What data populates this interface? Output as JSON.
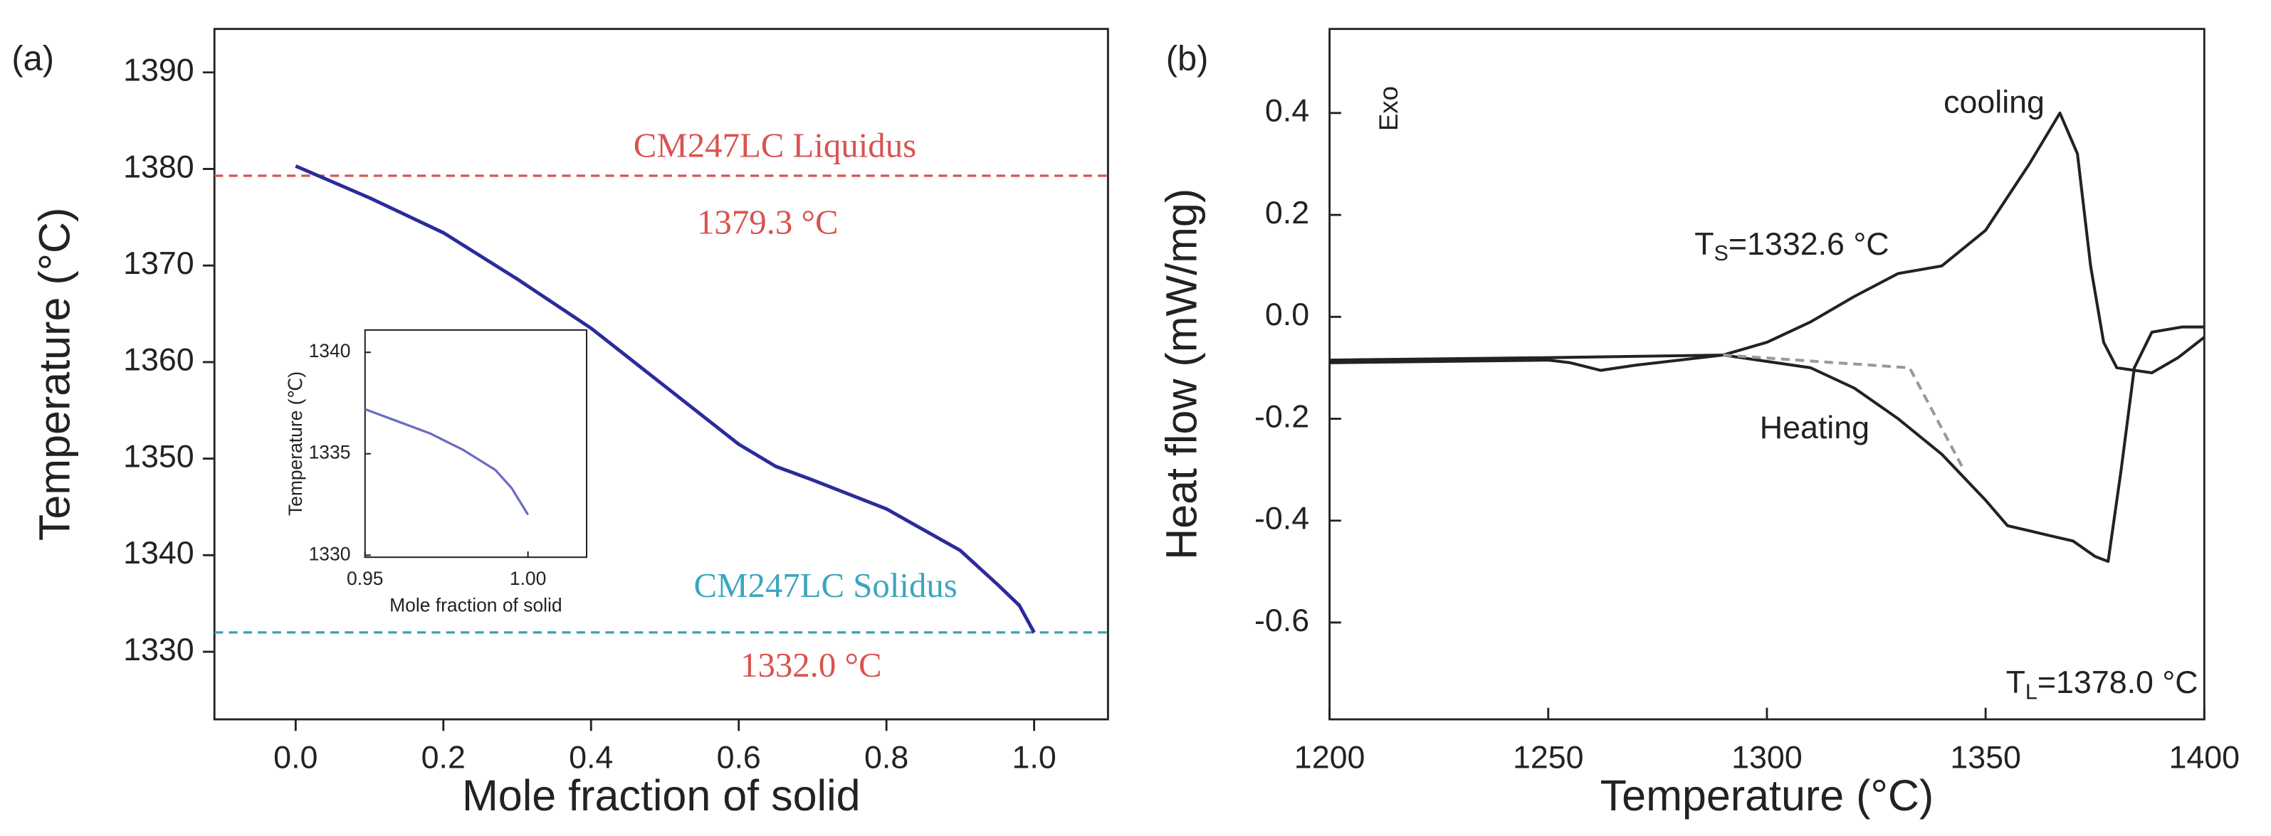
{
  "chart_data": [
    {
      "type": "line",
      "panel_label": "(a)",
      "x_label": "Mole fraction of solid",
      "y_label": "Temperature (°C)",
      "xlim": [
        -0.11,
        1.1
      ],
      "ylim": [
        1323,
        1394.5
      ],
      "xticks": [
        {
          "value": 0,
          "label": "0.0"
        },
        0.2,
        0.4,
        0.6,
        0.8,
        {
          "value": 1,
          "label": "1.0"
        }
      ],
      "yticks": [
        1330,
        1340,
        1350,
        1360,
        1370,
        1380,
        1390
      ],
      "series": [
        {
          "color": "#2b2b9c",
          "x": [
            0,
            0.1,
            0.2,
            0.3,
            0.4,
            0.5,
            0.6,
            0.65,
            0.7,
            0.8,
            0.9,
            0.95,
            0.98,
            1.0
          ],
          "values": [
            1380.3,
            1377,
            1373.4,
            1368.6,
            1363.5,
            1357.5,
            1351.5,
            1349.2,
            1347.8,
            1344.8,
            1340.5,
            1337,
            1334.8,
            1332
          ]
        }
      ],
      "reference_lines": [
        {
          "value": 1379.3,
          "color": "#d9534f",
          "label": "CM247LC Liquidus",
          "label_color": "#d9534f",
          "value_label": "1379.3 °C",
          "value_label_color": "#d9534f"
        },
        {
          "value": 1332.0,
          "color": "#3a9fb5",
          "label": "CM247LC Solidus",
          "label_color": "#3aa6c0",
          "value_label": "1332.0 °C",
          "value_label_color": "#d9534f"
        }
      ],
      "inset": {
        "type": "line",
        "x_label": "Mole fraction of solid",
        "y_label": "Temperature (℃)",
        "xlim": [
          0.95,
          1.018
        ],
        "ylim": [
          1329.9,
          1341.1
        ],
        "xticks": [
          0.95,
          {
            "value": 1,
            "label": "1.00"
          }
        ],
        "yticks": [
          1330,
          1335,
          1340
        ],
        "series": [
          {
            "color": "#6b6bc4",
            "x": [
              0.95,
              0.96,
              0.97,
              0.98,
              0.99,
              0.995,
              1.0
            ],
            "values": [
              1337.2,
              1336.6,
              1336,
              1335.2,
              1334.2,
              1333.3,
              1332
            ]
          }
        ]
      }
    },
    {
      "type": "line",
      "panel_label": "(b)",
      "x_label": "Temperature (°C)",
      "y_label": "Heat flow (mW/mg)",
      "xlim": [
        1200,
        1400
      ],
      "ylim": [
        -0.79,
        0.565
      ],
      "xticks": [
        1200,
        1250,
        1300,
        1350,
        1400
      ],
      "yticks": [
        0.4,
        0.2,
        {
          "value": 0,
          "label": "0.0"
        },
        -0.2,
        -0.4,
        -0.6
      ],
      "series": [
        {
          "color": "#222222",
          "x": [
            1200,
            1250,
            1255,
            1262,
            1270,
            1290,
            1300,
            1310,
            1320,
            1330,
            1340,
            1350,
            1360,
            1367,
            1371,
            1374,
            1377,
            1380,
            1388,
            1394,
            1400
          ],
          "values": [
            -0.09,
            -0.085,
            -0.09,
            -0.105,
            -0.095,
            -0.075,
            -0.05,
            -0.01,
            0.04,
            0.085,
            0.1,
            0.17,
            0.3,
            0.4,
            0.32,
            0.1,
            -0.05,
            -0.1,
            -0.11,
            -0.08,
            -0.04
          ]
        },
        {
          "color": "#222222",
          "x": [
            1200,
            1250,
            1290,
            1310,
            1320,
            1330,
            1340,
            1350,
            1355,
            1360,
            1365,
            1370,
            1375,
            1378,
            1381,
            1384,
            1388,
            1395,
            1400
          ],
          "values": [
            -0.085,
            -0.08,
            -0.075,
            -0.1,
            -0.14,
            -0.2,
            -0.27,
            -0.36,
            -0.41,
            -0.42,
            -0.43,
            -0.44,
            -0.47,
            -0.48,
            -0.3,
            -0.1,
            -0.03,
            -0.02,
            -0.02
          ]
        },
        {
          "color": "#999999",
          "dashed": true,
          "x": [
            1290,
            1332.6,
            1345
          ],
          "values": [
            -0.075,
            -0.1,
            -0.3
          ]
        }
      ],
      "annotations": [
        {
          "text": "Exo"
        },
        {
          "text": "cooling"
        },
        {
          "text": "Heating"
        },
        {
          "text": "T",
          "subscript": "S",
          "suffix": "=1332.6 °C"
        },
        {
          "text": "T",
          "subscript": "L",
          "suffix": "=1378.0 °C"
        }
      ]
    }
  ]
}
